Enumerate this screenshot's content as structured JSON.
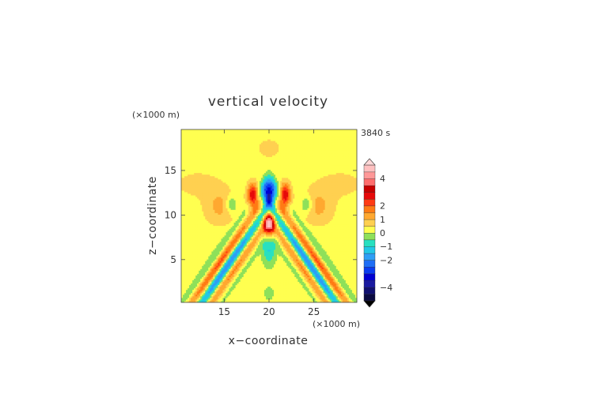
{
  "chart_data": {
    "type": "heatmap",
    "title": "vertical velocity",
    "time_label": "3840 s",
    "xlabel": "x−coordinate",
    "ylabel": "z−coordinate",
    "x_unit": "(×1000 m)",
    "y_unit": "(×1000 m)",
    "xlim": [
      10.2,
      29.8
    ],
    "ylim": [
      0.2,
      19.6
    ],
    "x_ticks": [
      15,
      20,
      25
    ],
    "y_ticks": [
      5,
      10,
      15
    ],
    "colorbar": {
      "levels": [
        -5,
        -4.5,
        -4,
        -3.5,
        -3,
        -2.5,
        -2,
        -1.5,
        -1,
        -0.5,
        0,
        0.5,
        1,
        1.5,
        2,
        2.5,
        3,
        3.5,
        4,
        4.5,
        5
      ],
      "colors": [
        "#0a0a40",
        "#101070",
        "#1a1aa0",
        "#0000d2",
        "#0a3cf0",
        "#1e6ef5",
        "#2e9ef5",
        "#22c8e6",
        "#28e0c0",
        "#8ee05a",
        "#ffff50",
        "#ffd050",
        "#ffa830",
        "#ff7a14",
        "#ff3a14",
        "#e60a0a",
        "#c80000",
        "#ff6e6e",
        "#ff9898",
        "#ffc0c0"
      ],
      "tick_values": [
        4,
        2,
        1,
        0,
        -1,
        -2,
        -4
      ],
      "tick_labels": [
        "4",
        "2",
        "1",
        "0",
        "−1",
        "−2",
        "−4"
      ]
    },
    "features": [
      {
        "x": 20.0,
        "z": 12.3,
        "value": -4.2
      },
      {
        "x": 20.0,
        "z": 9.0,
        "value": 3.8
      },
      {
        "x": 18.2,
        "z": 12.2,
        "value": 2.6
      },
      {
        "x": 21.8,
        "z": 12.2,
        "value": 2.6
      },
      {
        "x": 20.0,
        "z": 17.3,
        "value": 0.3
      },
      {
        "x": 16.0,
        "z": 6.8,
        "value": -1.8
      },
      {
        "x": 24.0,
        "z": 6.8,
        "value": -1.8
      },
      {
        "x": 13.5,
        "z": 3.5,
        "value": -1.6
      },
      {
        "x": 26.5,
        "z": 3.5,
        "value": -1.6
      },
      {
        "x": 17.5,
        "z": 5.0,
        "value": 1.6
      },
      {
        "x": 22.5,
        "z": 5.0,
        "value": 1.6
      },
      {
        "x": 14.5,
        "z": 10.5,
        "value": 0.7
      },
      {
        "x": 25.5,
        "z": 10.5,
        "value": 0.7
      }
    ]
  }
}
